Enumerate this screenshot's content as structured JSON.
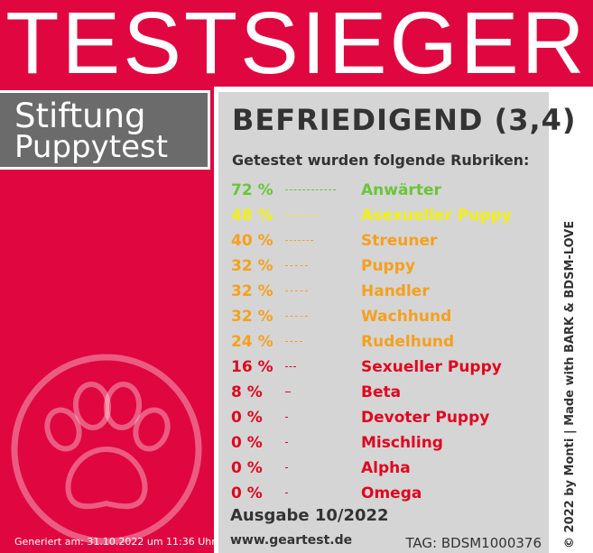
{
  "banner": {
    "title": "TESTSIEGER"
  },
  "brand": {
    "line1": "Stiftung",
    "line2": "Puppytest"
  },
  "result": {
    "rating": "BEFRIEDIGEND (3,4)",
    "subtitle": "Getestet wurden folgende Rubriken:"
  },
  "categories": [
    {
      "percent_text": "72 %",
      "percent": 72,
      "name": "Anwärter",
      "color": "#69c53a"
    },
    {
      "percent_text": "48 %",
      "percent": 48,
      "name": "Asexueller Puppy",
      "color": "#f2ef12"
    },
    {
      "percent_text": "40 %",
      "percent": 40,
      "name": "Streuner",
      "color": "#f5a01e"
    },
    {
      "percent_text": "32 %",
      "percent": 32,
      "name": "Puppy",
      "color": "#f5a01e"
    },
    {
      "percent_text": "32 %",
      "percent": 32,
      "name": "Handler",
      "color": "#f5a01e"
    },
    {
      "percent_text": "32 %",
      "percent": 32,
      "name": "Wachhund",
      "color": "#f5a01e"
    },
    {
      "percent_text": "24 %",
      "percent": 24,
      "name": "Rudelhund",
      "color": "#f5a01e"
    },
    {
      "percent_text": "16 %",
      "percent": 16,
      "name": "Sexueller Puppy",
      "color": "#e0061f"
    },
    {
      "percent_text": "8 %",
      "percent": 8,
      "name": "Beta",
      "color": "#e0061f"
    },
    {
      "percent_text": "0 %",
      "percent": 0,
      "name": "Devoter Puppy",
      "color": "#e0061f"
    },
    {
      "percent_text": "0 %",
      "percent": 0,
      "name": "Mischling",
      "color": "#e0061f"
    },
    {
      "percent_text": "0 %",
      "percent": 0,
      "name": "Alpha",
      "color": "#e0061f"
    },
    {
      "percent_text": "0 %",
      "percent": 0,
      "name": "Omega",
      "color": "#e0061f"
    }
  ],
  "footer": {
    "issue": "Ausgabe 10/2022",
    "website": "www.geartest.de",
    "tag": "TAG: BDSM1000376",
    "generated": "Generiert am: 31.10.2022 um 11:36 Uhr",
    "credit": "© 2022 by Monti | Made with BARK & BDSM-LOVE"
  },
  "icons": {
    "paw": "paw-print-icon"
  },
  "colors": {
    "brand_red": "#e0063f",
    "brand_gray": "#6b6b6b",
    "card_bg": "#d5d5d5"
  }
}
